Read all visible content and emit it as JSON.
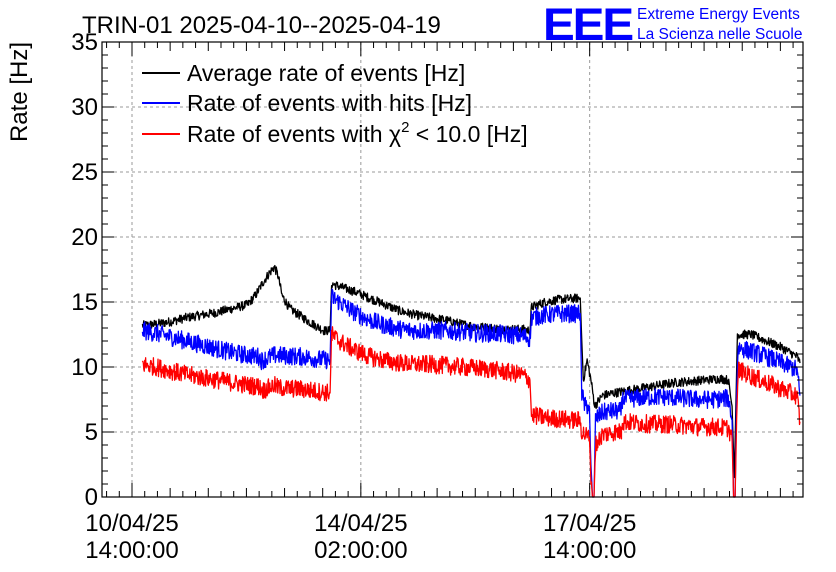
{
  "chart_data": {
    "type": "line",
    "title": "TRIN-01 2025-04-10--2025-04-19",
    "ylabel": "Rate [Hz]",
    "xlabel": "",
    "ylim": [
      0,
      35
    ],
    "yticks": [
      0,
      5,
      10,
      15,
      20,
      25,
      30,
      35
    ],
    "x_unit": "days from 2025-04-10 00:00",
    "xlim": [
      0.69,
      9.88
    ],
    "xticks": [
      {
        "x": 1.0833,
        "line1": "10/04/25",
        "line2": "14:00:00"
      },
      {
        "x": 4.0833,
        "line1": "14/04/25",
        "line2": "02:00:00"
      },
      {
        "x": 7.0833,
        "line1": "17/04/25",
        "line2": "14:00:00"
      }
    ],
    "grid": true,
    "legend_position": "top-left",
    "series": [
      {
        "name": "Average rate of events [Hz]",
        "color": "#000000",
        "noise": 0.35,
        "points": [
          [
            1.22,
            13.2
          ],
          [
            1.4,
            13.3
          ],
          [
            1.6,
            13.5
          ],
          [
            1.8,
            13.8
          ],
          [
            2.0,
            14.0
          ],
          [
            2.2,
            14.2
          ],
          [
            2.4,
            14.5
          ],
          [
            2.6,
            14.8
          ],
          [
            2.7,
            15.5
          ],
          [
            2.8,
            16.5
          ],
          [
            2.88,
            17.2
          ],
          [
            2.95,
            17.7
          ],
          [
            3.0,
            17.0
          ],
          [
            3.05,
            15.5
          ],
          [
            3.15,
            14.5
          ],
          [
            3.4,
            13.5
          ],
          [
            3.6,
            12.8
          ],
          [
            3.68,
            12.8
          ],
          [
            3.7,
            16.4
          ],
          [
            3.8,
            16.2
          ],
          [
            4.0,
            15.8
          ],
          [
            4.2,
            15.3
          ],
          [
            4.4,
            14.8
          ],
          [
            4.6,
            14.3
          ],
          [
            4.8,
            14.0
          ],
          [
            5.0,
            13.8
          ],
          [
            5.2,
            13.6
          ],
          [
            5.4,
            13.3
          ],
          [
            5.6,
            13.1
          ],
          [
            5.8,
            13.0
          ],
          [
            6.0,
            12.9
          ],
          [
            6.2,
            12.9
          ],
          [
            6.3,
            12.8
          ],
          [
            6.32,
            14.6
          ],
          [
            6.5,
            15.0
          ],
          [
            6.7,
            15.2
          ],
          [
            6.96,
            15.3
          ],
          [
            6.98,
            12.0
          ],
          [
            7.0,
            9.0
          ],
          [
            7.05,
            10.5
          ],
          [
            7.1,
            9.0
          ],
          [
            7.15,
            7.0
          ],
          [
            7.25,
            7.8
          ],
          [
            7.4,
            8.0
          ],
          [
            7.6,
            8.2
          ],
          [
            7.8,
            8.4
          ],
          [
            8.0,
            8.6
          ],
          [
            8.2,
            8.8
          ],
          [
            8.4,
            8.9
          ],
          [
            8.6,
            9.0
          ],
          [
            8.8,
            9.1
          ],
          [
            8.9,
            9.0
          ],
          [
            8.95,
            7.0
          ],
          [
            8.98,
            1.5
          ],
          [
            9.0,
            7.0
          ],
          [
            9.02,
            12.5
          ],
          [
            9.2,
            12.5
          ],
          [
            9.4,
            12.0
          ],
          [
            9.6,
            11.5
          ],
          [
            9.8,
            10.8
          ],
          [
            9.84,
            10.3
          ]
        ]
      },
      {
        "name": "Rate of events with hits [Hz]",
        "color": "#0000ff",
        "noise": 0.7,
        "points": [
          [
            1.22,
            12.8
          ],
          [
            1.4,
            12.6
          ],
          [
            1.6,
            12.3
          ],
          [
            1.8,
            12.0
          ],
          [
            2.0,
            11.7
          ],
          [
            2.2,
            11.4
          ],
          [
            2.4,
            11.1
          ],
          [
            2.6,
            10.9
          ],
          [
            2.75,
            10.8
          ],
          [
            2.78,
            10.5
          ],
          [
            2.95,
            10.9
          ],
          [
            3.0,
            10.9
          ],
          [
            3.3,
            10.8
          ],
          [
            3.68,
            10.5
          ],
          [
            3.7,
            15.4
          ],
          [
            3.8,
            15.0
          ],
          [
            4.0,
            14.2
          ],
          [
            4.2,
            13.6
          ],
          [
            4.4,
            13.2
          ],
          [
            4.6,
            12.9
          ],
          [
            4.8,
            12.8
          ],
          [
            5.0,
            12.8
          ],
          [
            5.2,
            12.8
          ],
          [
            5.4,
            12.7
          ],
          [
            5.6,
            12.6
          ],
          [
            5.8,
            12.6
          ],
          [
            6.0,
            12.5
          ],
          [
            6.2,
            12.4
          ],
          [
            6.3,
            12.2
          ],
          [
            6.32,
            13.8
          ],
          [
            6.5,
            14.0
          ],
          [
            6.7,
            14.1
          ],
          [
            6.96,
            14.1
          ],
          [
            6.98,
            8.0
          ],
          [
            7.02,
            7.0
          ],
          [
            7.08,
            7.0
          ],
          [
            7.1,
            2.0
          ],
          [
            7.12,
            0.0
          ],
          [
            7.14,
            0.0
          ],
          [
            7.16,
            6.0
          ],
          [
            7.25,
            6.5
          ],
          [
            7.35,
            6.6
          ],
          [
            7.5,
            6.6
          ],
          [
            7.5,
            7.5
          ],
          [
            7.7,
            7.6
          ],
          [
            7.9,
            7.7
          ],
          [
            8.1,
            7.7
          ],
          [
            8.3,
            7.6
          ],
          [
            8.5,
            7.5
          ],
          [
            8.7,
            7.5
          ],
          [
            8.9,
            7.6
          ],
          [
            8.95,
            6.0
          ],
          [
            8.97,
            0.0
          ],
          [
            8.99,
            0.0
          ],
          [
            9.01,
            8.0
          ],
          [
            9.03,
            11.5
          ],
          [
            9.2,
            11.2
          ],
          [
            9.4,
            10.8
          ],
          [
            9.6,
            10.3
          ],
          [
            9.8,
            9.8
          ],
          [
            9.84,
            7.8
          ]
        ]
      },
      {
        "name": "Rate of events with χ² < 10.0 [Hz]",
        "color": "#ff0000",
        "noise": 0.7,
        "points": [
          [
            1.22,
            10.2
          ],
          [
            1.4,
            10.0
          ],
          [
            1.6,
            9.7
          ],
          [
            1.8,
            9.4
          ],
          [
            2.0,
            9.2
          ],
          [
            2.2,
            9.0
          ],
          [
            2.4,
            8.8
          ],
          [
            2.6,
            8.6
          ],
          [
            2.75,
            8.5
          ],
          [
            2.8,
            8.2
          ],
          [
            2.95,
            8.6
          ],
          [
            3.0,
            8.4
          ],
          [
            3.3,
            8.3
          ],
          [
            3.68,
            8.0
          ],
          [
            3.7,
            12.5
          ],
          [
            3.8,
            12.0
          ],
          [
            4.0,
            11.3
          ],
          [
            4.2,
            10.8
          ],
          [
            4.4,
            10.5
          ],
          [
            4.6,
            10.3
          ],
          [
            4.8,
            10.2
          ],
          [
            5.0,
            10.2
          ],
          [
            5.2,
            10.1
          ],
          [
            5.4,
            10.0
          ],
          [
            5.6,
            9.9
          ],
          [
            5.8,
            9.8
          ],
          [
            6.0,
            9.6
          ],
          [
            6.2,
            9.4
          ],
          [
            6.3,
            9.0
          ],
          [
            6.32,
            6.3
          ],
          [
            6.5,
            6.1
          ],
          [
            6.7,
            6.0
          ],
          [
            6.9,
            5.9
          ],
          [
            6.96,
            5.9
          ],
          [
            6.98,
            5.0
          ],
          [
            7.02,
            4.8
          ],
          [
            7.08,
            4.6
          ],
          [
            7.1,
            1.5
          ],
          [
            7.12,
            0.0
          ],
          [
            7.14,
            0.0
          ],
          [
            7.16,
            4.0
          ],
          [
            7.25,
            4.8
          ],
          [
            7.4,
            5.0
          ],
          [
            7.5,
            5.0
          ],
          [
            7.5,
            5.8
          ],
          [
            7.7,
            5.7
          ],
          [
            7.9,
            5.6
          ],
          [
            8.1,
            5.6
          ],
          [
            8.3,
            5.5
          ],
          [
            8.5,
            5.4
          ],
          [
            8.7,
            5.4
          ],
          [
            8.9,
            5.3
          ],
          [
            8.95,
            4.5
          ],
          [
            8.97,
            0.0
          ],
          [
            8.99,
            0.0
          ],
          [
            9.01,
            6.0
          ],
          [
            9.03,
            9.8
          ],
          [
            9.2,
            9.3
          ],
          [
            9.4,
            8.8
          ],
          [
            9.6,
            8.3
          ],
          [
            9.8,
            7.8
          ],
          [
            9.84,
            5.8
          ]
        ]
      }
    ]
  },
  "logo": {
    "letters": "EEE",
    "line1": "Extreme Energy Events",
    "line2": "La Scienza nelle Scuole",
    "color": "#0000ff"
  }
}
